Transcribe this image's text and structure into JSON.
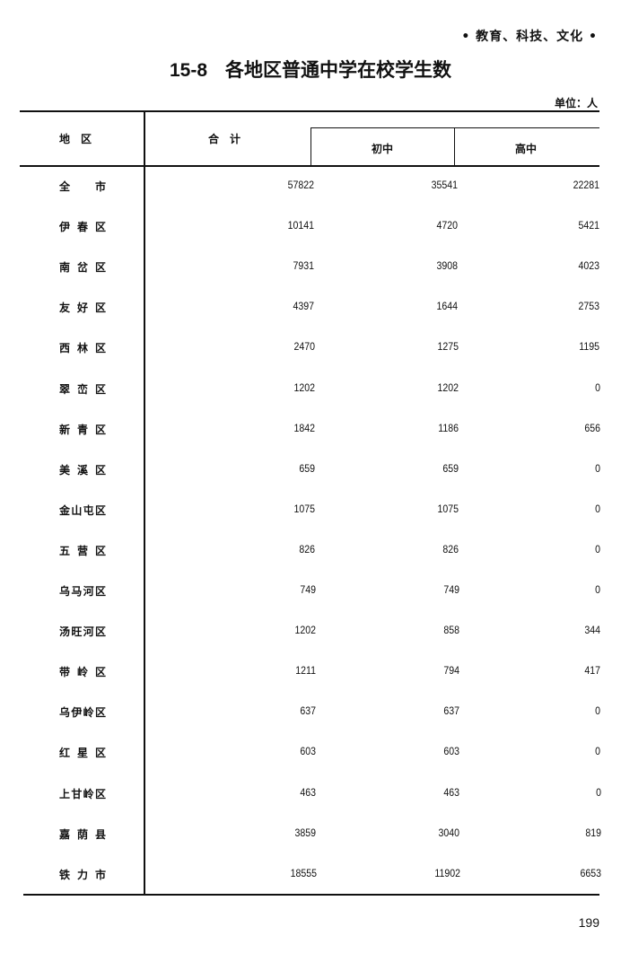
{
  "header": {
    "section": "• 教育、科技、文化 •",
    "table_number": "15-8",
    "title": "各地区普通中学在校学生数",
    "unit": "单位：人"
  },
  "table": {
    "columns": {
      "region": "地　区",
      "total": "合　计",
      "junior": "初中",
      "senior": "高中"
    },
    "rows": [
      {
        "region": "全市",
        "total": "57822",
        "junior": "35541",
        "senior": "22281"
      },
      {
        "region": "伊春区",
        "total": "10141",
        "junior": "4720",
        "senior": "5421"
      },
      {
        "region": "南岔区",
        "total": "7931",
        "junior": "3908",
        "senior": "4023"
      },
      {
        "region": "友好区",
        "total": "4397",
        "junior": "1644",
        "senior": "2753"
      },
      {
        "region": "西林区",
        "total": "2470",
        "junior": "1275",
        "senior": "1195"
      },
      {
        "region": "翠峦区",
        "total": "1202",
        "junior": "1202",
        "senior": "0"
      },
      {
        "region": "新青区",
        "total": "1842",
        "junior": "1186",
        "senior": "656"
      },
      {
        "region": "美溪区",
        "total": "659",
        "junior": "659",
        "senior": "0"
      },
      {
        "region": "金山屯区",
        "total": "1075",
        "junior": "1075",
        "senior": "0"
      },
      {
        "region": "五营区",
        "total": "826",
        "junior": "826",
        "senior": "0"
      },
      {
        "region": "乌马河区",
        "total": "749",
        "junior": "749",
        "senior": "0"
      },
      {
        "region": "汤旺河区",
        "total": "1202",
        "junior": "858",
        "senior": "344"
      },
      {
        "region": "带岭区",
        "total": "1211",
        "junior": "794",
        "senior": "417"
      },
      {
        "region": "乌伊岭区",
        "total": "637",
        "junior": "637",
        "senior": "0"
      },
      {
        "region": "红星区",
        "total": "603",
        "junior": "603",
        "senior": "0"
      },
      {
        "region": "上甘岭区",
        "total": "463",
        "junior": "463",
        "senior": "0"
      },
      {
        "region": "嘉荫县",
        "total": "3859",
        "junior": "3040",
        "senior": "819"
      },
      {
        "region": "铁力市",
        "total": "18555",
        "junior": "11902",
        "senior": "6653"
      }
    ]
  },
  "footer": {
    "page_number": "199"
  }
}
